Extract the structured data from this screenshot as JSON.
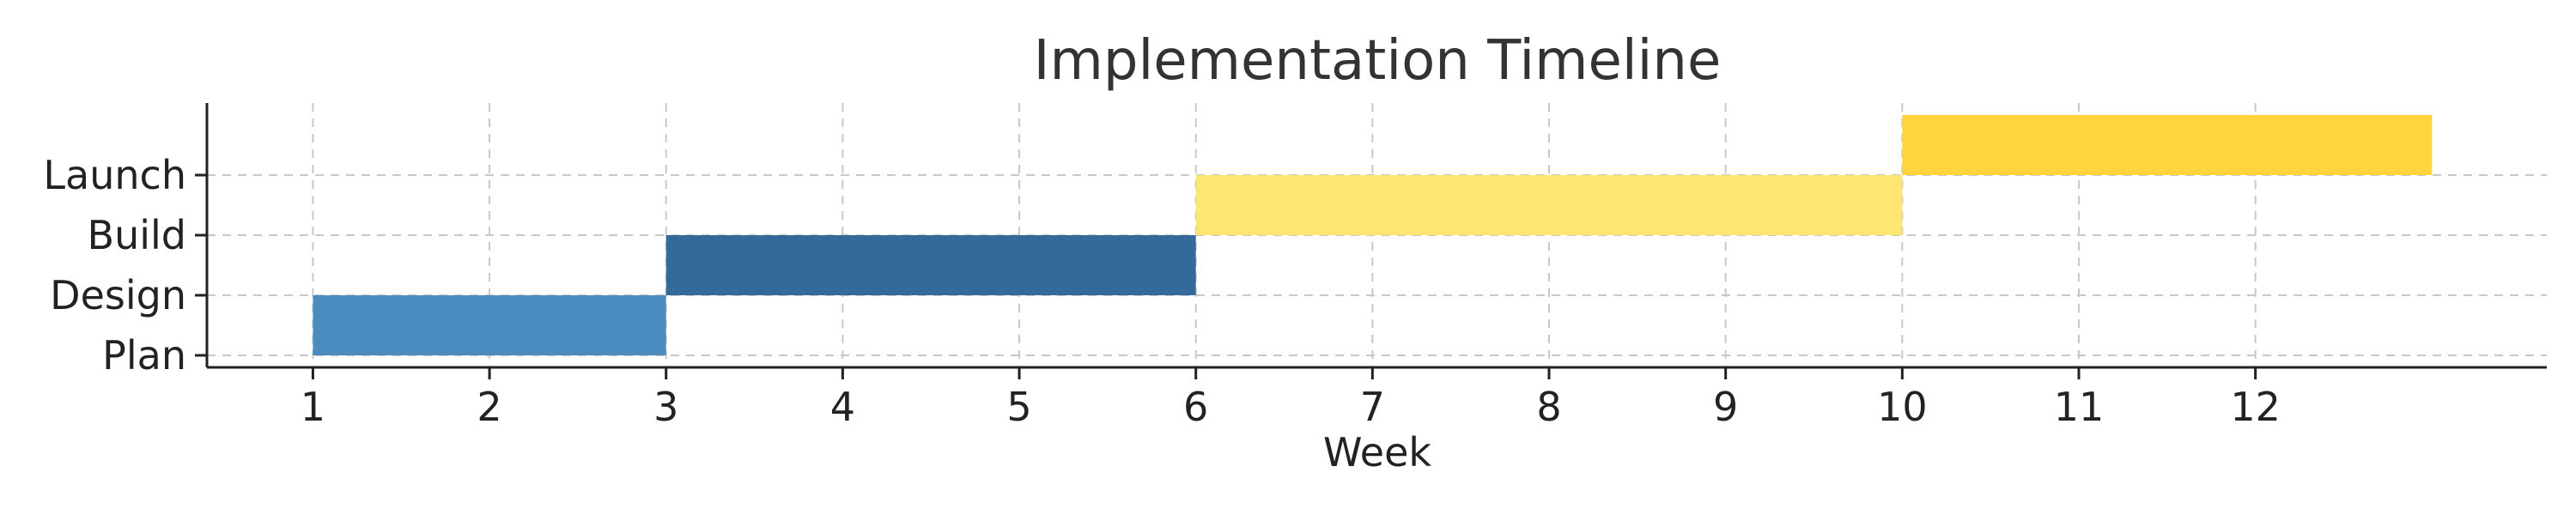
{
  "chart_data": {
    "type": "bar",
    "orientation": "gantt",
    "title": "Implementation Timeline",
    "xlabel": "Week",
    "ylabel": "",
    "xlim": [
      0.4,
      13.65
    ],
    "ylim": [
      -0.2,
      4.2
    ],
    "x_ticks": [
      1,
      2,
      3,
      4,
      5,
      6,
      7,
      8,
      9,
      10,
      11,
      12
    ],
    "grid": true,
    "tasks": [
      {
        "name": "Plan",
        "start": 1,
        "end": 3,
        "color": "#4a8bc0"
      },
      {
        "name": "Design",
        "start": 3,
        "end": 6,
        "color": "#336a99"
      },
      {
        "name": "Build",
        "start": 6,
        "end": 10,
        "color": "#ffe672"
      },
      {
        "name": "Launch",
        "start": 10,
        "end": 13,
        "color": "#ffd43f"
      }
    ],
    "bar_bottoms": [
      0,
      1,
      2,
      3
    ],
    "y_tick_positions": [
      0,
      1,
      2,
      3
    ]
  }
}
